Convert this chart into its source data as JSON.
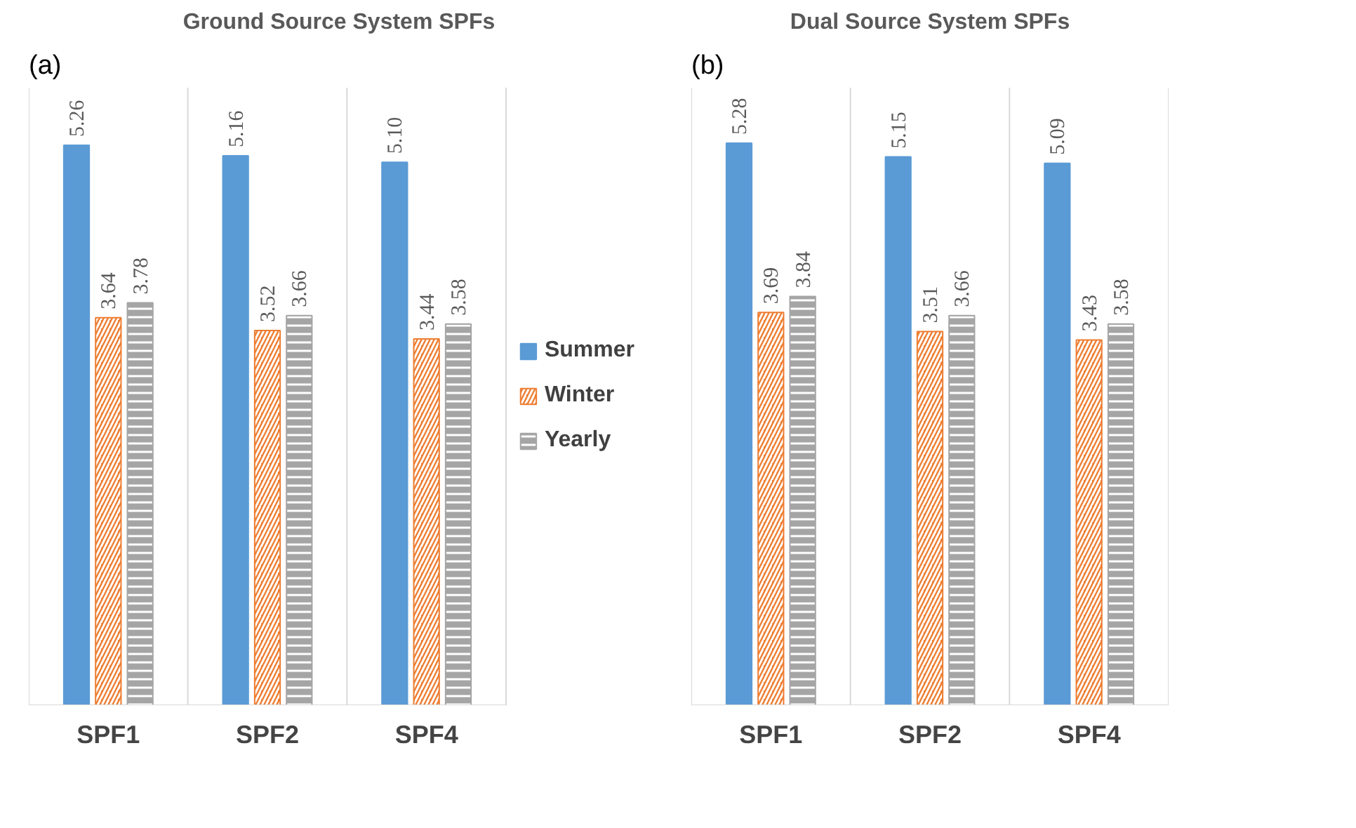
{
  "chart_data": [
    {
      "type": "bar",
      "title": "Ground Source System SPFs",
      "annotations": [
        "(a)"
      ],
      "categories": [
        "SPF1",
        "SPF2",
        "SPF4"
      ],
      "series": [
        {
          "name": "Summer",
          "color": "#5b9bd5",
          "values": [
            5.26,
            5.16,
            5.1
          ],
          "value_labels": [
            "5.26",
            "5.16",
            "5.10"
          ]
        },
        {
          "name": "Winter",
          "color": "#ed7d31",
          "values": [
            3.64,
            3.52,
            3.44
          ],
          "value_labels": [
            "3.64",
            "3.52",
            "3.44"
          ]
        },
        {
          "name": "Yearly",
          "color": "#a5a5a5",
          "values": [
            3.78,
            3.66,
            3.58
          ],
          "value_labels": [
            "3.78",
            "3.66",
            "3.58"
          ]
        }
      ],
      "ylim": [
        0,
        5.8
      ],
      "tick_labels": "x",
      "grid": "x",
      "legend": "right"
    },
    {
      "type": "bar",
      "title": "Dual Source System SPFs",
      "annotations": [
        "(b)"
      ],
      "categories": [
        "SPF1",
        "SPF2",
        "SPF4"
      ],
      "series": [
        {
          "color": "#5b9bd5",
          "values": [
            5.28,
            5.15,
            5.09
          ],
          "value_labels": [
            "5.28",
            "5.15",
            "5.09"
          ]
        },
        {
          "color": "#ed7d31",
          "values": [
            3.69,
            3.51,
            3.43
          ],
          "value_labels": [
            "3.69",
            "3.51",
            "3.43"
          ]
        },
        {
          "color": "#a5a5a5",
          "values": [
            3.84,
            3.66,
            3.58
          ],
          "value_labels": [
            "3.84",
            "3.66",
            "3.58"
          ]
        }
      ],
      "ylim": [
        0,
        5.8
      ],
      "tick_labels": "x",
      "grid": "x",
      "legend": false
    }
  ]
}
